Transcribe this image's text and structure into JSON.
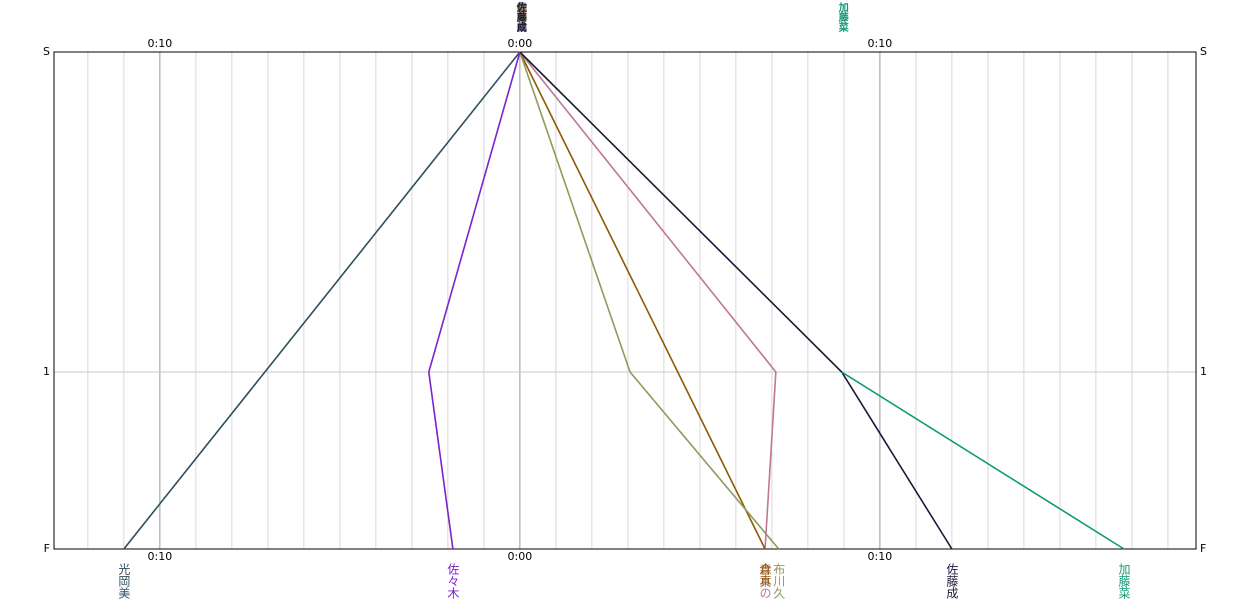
{
  "chart_data": {
    "type": "line",
    "y_inverted": true,
    "xlim": [
      -12.94,
      18.78
    ],
    "xticks": [
      {
        "value": -10,
        "label": "0:10"
      },
      {
        "value": 0,
        "label": "0:00"
      },
      {
        "value": 10,
        "label": "0:10"
      }
    ],
    "minor_grid_step": 1,
    "ylim": [
      0,
      1.553
    ],
    "yticks": [
      {
        "value": 0,
        "label": "S"
      },
      {
        "value": 1,
        "label": "1"
      },
      {
        "value": 1.553,
        "label": "F"
      }
    ],
    "grid": true,
    "series": [
      {
        "name": "光岡美",
        "color": "#2f4f5f",
        "x": [
          0,
          -11.0
        ],
        "y": [
          0,
          1.553
        ]
      },
      {
        "name": "佐々木",
        "color": "#7a22cc",
        "x": [
          0,
          -2.53,
          -1.86
        ],
        "y": [
          0,
          1,
          1.553
        ]
      },
      {
        "name": "森本の",
        "color": "#c07890",
        "x": [
          0,
          7.11,
          6.81
        ],
        "y": [
          0,
          1,
          1.553
        ]
      },
      {
        "name": "倉真",
        "color": "#8b5a00",
        "x": [
          0,
          6.81
        ],
        "y": [
          0,
          1.553
        ]
      },
      {
        "name": "布川久",
        "color": "#8f9a5c",
        "x": [
          0,
          3.06,
          7.19
        ],
        "y": [
          0,
          1,
          1.553
        ]
      },
      {
        "name": "佐藤成",
        "color": "#1a1a3a",
        "x": [
          0,
          8.94,
          12.0
        ],
        "y": [
          0,
          1,
          1.553
        ]
      },
      {
        "name": "加藤菜",
        "color": "#109a78",
        "x": [
          8.94,
          16.78
        ],
        "y": [
          1,
          1.553
        ]
      }
    ]
  }
}
